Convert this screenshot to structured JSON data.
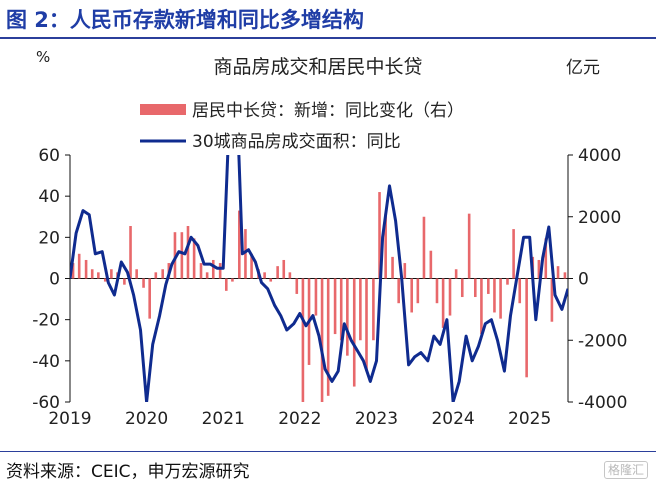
{
  "header": {
    "title": "图 2：人民币存款新增和同比多增结构"
  },
  "footer": {
    "source": "资料来源：CEIC，申万宏源研究",
    "watermark": "格隆汇"
  },
  "chart_data": {
    "type": "bar+line",
    "title": "商品房成交和居民中长贷",
    "left_unit": "%",
    "right_unit": "亿元",
    "left_axis": {
      "range": [
        -60,
        60
      ],
      "ticks": [
        60,
        40,
        20,
        0,
        -20,
        -40,
        -60
      ]
    },
    "right_axis": {
      "range": [
        -4000,
        4000
      ],
      "ticks": [
        4000,
        2000,
        0,
        -2000,
        -4000
      ]
    },
    "x_ticks": [
      "2019",
      "2020",
      "2021",
      "2022",
      "2023",
      "2024",
      "2025"
    ],
    "x_range": [
      2019,
      2025.5
    ],
    "legend": [
      "居民中长贷：新增：同比变化（右）",
      "30城商品房成交面积：同比"
    ],
    "colors": {
      "bars": "#e8686b",
      "line": "#0f2b8f",
      "title": "#1f3da6"
    },
    "series": [
      {
        "name": "居民中长贷：新增：同比变化（右）",
        "axis": "right",
        "type": "bar",
        "x": [
          2019.04,
          2019.12,
          2019.21,
          2019.29,
          2019.37,
          2019.46,
          2019.54,
          2019.62,
          2019.71,
          2019.79,
          2019.87,
          2019.96,
          2020.04,
          2020.12,
          2020.21,
          2020.29,
          2020.37,
          2020.46,
          2020.54,
          2020.62,
          2020.71,
          2020.79,
          2020.87,
          2020.96,
          2021.04,
          2021.12,
          2021.21,
          2021.29,
          2021.37,
          2021.46,
          2021.54,
          2021.62,
          2021.71,
          2021.79,
          2021.87,
          2021.96,
          2022.04,
          2022.12,
          2022.21,
          2022.29,
          2022.37,
          2022.46,
          2022.54,
          2022.62,
          2022.71,
          2022.79,
          2022.87,
          2022.96,
          2023.04,
          2023.12,
          2023.21,
          2023.29,
          2023.37,
          2023.46,
          2023.54,
          2023.62,
          2023.71,
          2023.79,
          2023.87,
          2023.96,
          2024.04,
          2024.12,
          2024.21,
          2024.29,
          2024.37,
          2024.46,
          2024.54,
          2024.62,
          2024.71,
          2024.79,
          2024.87,
          2024.96,
          2025.04,
          2025.12,
          2025.21,
          2025.29,
          2025.37,
          2025.46
        ],
        "values": [
          500,
          800,
          600,
          300,
          200,
          -100,
          300,
          200,
          -200,
          1700,
          300,
          -300,
          -1300,
          200,
          300,
          500,
          1500,
          1500,
          1700,
          1300,
          500,
          200,
          600,
          500,
          -400,
          -100,
          2200,
          1600,
          800,
          300,
          200,
          -100,
          400,
          600,
          200,
          -500,
          -4000,
          -2800,
          -1200,
          -4000,
          -3800,
          -1800,
          -2000,
          -2500,
          -3500,
          -2000,
          -3000,
          -2000,
          2800,
          2100,
          700,
          -800,
          500,
          -1100,
          -800,
          2000,
          900,
          -800,
          -1600,
          -1200,
          300,
          -600,
          2100,
          -600,
          -1800,
          -500,
          -1100,
          -1300,
          -200,
          1600,
          -800,
          -3200,
          700,
          600,
          1300,
          -1400,
          400,
          200
        ]
      },
      {
        "name": "30城商品房成交面积：同比",
        "axis": "left",
        "type": "line",
        "x": [
          2019.0,
          2019.08,
          2019.17,
          2019.25,
          2019.33,
          2019.42,
          2019.5,
          2019.58,
          2019.67,
          2019.75,
          2019.83,
          2019.92,
          2020.0,
          2020.08,
          2020.17,
          2020.25,
          2020.33,
          2020.42,
          2020.5,
          2020.58,
          2020.67,
          2020.75,
          2020.83,
          2020.92,
          2021.0,
          2021.08,
          2021.17,
          2021.25,
          2021.33,
          2021.42,
          2021.5,
          2021.58,
          2021.67,
          2021.75,
          2021.83,
          2021.92,
          2022.0,
          2022.08,
          2022.17,
          2022.25,
          2022.33,
          2022.42,
          2022.5,
          2022.58,
          2022.67,
          2022.75,
          2022.83,
          2022.92,
          2023.0,
          2023.08,
          2023.17,
          2023.25,
          2023.33,
          2023.42,
          2023.5,
          2023.58,
          2023.67,
          2023.75,
          2023.83,
          2023.92,
          2024.0,
          2024.08,
          2024.17,
          2024.25,
          2024.33,
          2024.42,
          2024.5,
          2024.58,
          2024.67,
          2024.75,
          2024.83,
          2024.92,
          2025.0,
          2025.08,
          2025.17,
          2025.25,
          2025.33,
          2025.42,
          2025.5
        ],
        "values": [
          0,
          22,
          33,
          31,
          12,
          13,
          -2,
          -8,
          8,
          3,
          -8,
          -25,
          -60,
          -32,
          -18,
          -3,
          7,
          13,
          12,
          20,
          16,
          7,
          7,
          5,
          5,
          80,
          95,
          12,
          14,
          8,
          -2,
          -5,
          -13,
          -18,
          -25,
          -22,
          -17,
          -23,
          -18,
          -28,
          -44,
          -50,
          -45,
          -22,
          -30,
          -35,
          -40,
          -50,
          -40,
          20,
          45,
          28,
          0,
          -42,
          -38,
          -36,
          -40,
          -28,
          -32,
          -20,
          -60,
          -50,
          -28,
          -40,
          -33,
          -22,
          -20,
          -30,
          -45,
          -18,
          0,
          20,
          20,
          -20,
          10,
          25,
          -8,
          -15,
          -5
        ]
      }
    ]
  }
}
